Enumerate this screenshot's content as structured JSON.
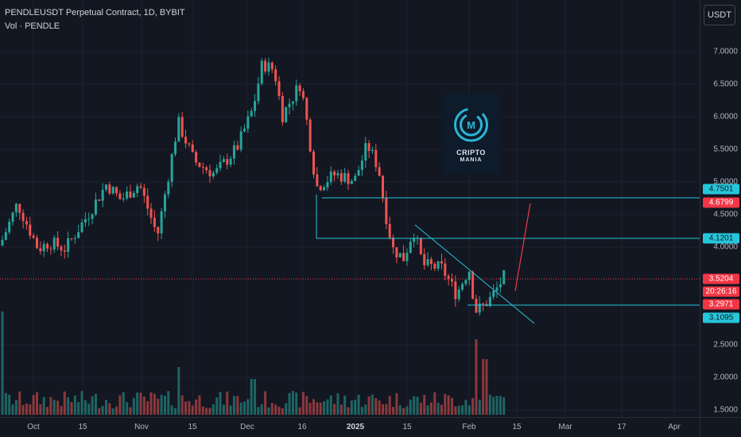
{
  "header": {
    "symbol_line": "PENDLEUSDT Perpetual Contract, 1D, BYBIT",
    "volume_line": "Vol · PENDLE",
    "currency_button": "USDT"
  },
  "price_axis": {
    "labels": [
      "7.0000",
      "6.5000",
      "6.0000",
      "5.5000",
      "5.0000",
      "4.5000",
      "4.0000",
      "2.5000",
      "2.0000",
      "1.5000"
    ],
    "tags": [
      {
        "text": "4.7501",
        "bg": "#26c6da",
        "fg": "#131722"
      },
      {
        "text": "4.6799",
        "bg": "#f23645",
        "fg": "#ffffff"
      },
      {
        "text": "4.1201",
        "bg": "#26c6da",
        "fg": "#131722"
      },
      {
        "text": "3.5204",
        "bg": "#f23645",
        "fg": "#ffffff"
      },
      {
        "text": "20:26:16",
        "bg": "#f23645",
        "fg": "#ffffff"
      },
      {
        "text": "3.2971",
        "bg": "#f23645",
        "fg": "#ffffff"
      },
      {
        "text": "3.1095",
        "bg": "#26c6da",
        "fg": "#131722"
      }
    ]
  },
  "time_axis": {
    "labels": [
      "Oct",
      "15",
      "Nov",
      "15",
      "Dec",
      "16",
      "2025",
      "15",
      "Feb",
      "15",
      "Mar",
      "17",
      "Apr"
    ]
  },
  "watermark": {
    "line1": "CRIPTO",
    "line2": "MANIA"
  },
  "colors": {
    "up": "#26a69a",
    "down": "#ef5350",
    "level_line": "#26c6da",
    "trend_line": "#26c6da",
    "projection": "#f23645",
    "last_price_line": "#f23645",
    "background": "#131722"
  }
}
